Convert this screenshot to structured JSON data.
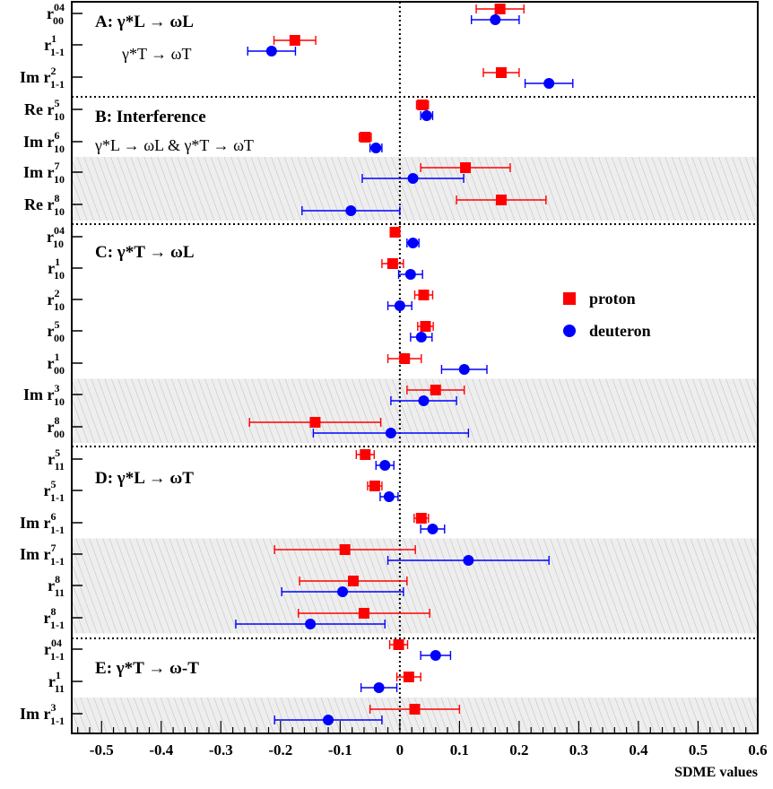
{
  "chart_data": {
    "type": "scatter",
    "xlabel": "SDME values",
    "xlim": [
      -0.55,
      0.6
    ],
    "x_ticks": [
      "-0.5",
      "-0.4",
      "-0.3",
      "-0.2",
      "-0.1",
      "0",
      "0.1",
      "0.2",
      "0.3",
      "0.4",
      "0.5",
      "0.6"
    ],
    "legend_position": "right",
    "series": [
      {
        "name": "proton",
        "color": "#ff0000",
        "marker": "square"
      },
      {
        "name": "deuteron",
        "color": "#0000ff",
        "marker": "circle"
      }
    ],
    "groups": [
      {
        "letter": "A",
        "lines": [
          "γ*L → ωL",
          "γ*T → ωT"
        ]
      },
      {
        "letter": "B",
        "lines": [
          "Interference",
          "γ*L → ωL & γ*T → ωT"
        ]
      },
      {
        "letter": "C",
        "lines": [
          "γ*T → ωL"
        ]
      },
      {
        "letter": "D",
        "lines": [
          "γ*L → ωT"
        ]
      },
      {
        "letter": "E",
        "lines": [
          "γ*T → ω-T"
        ]
      }
    ],
    "rows": [
      {
        "prefix": "",
        "sup": "04",
        "sub": "00",
        "group": "A",
        "shaded": false,
        "proton": {
          "value": 0.168,
          "err_low": 0.04,
          "err_high": 0.04
        },
        "deuteron": {
          "value": 0.16,
          "err_low": 0.04,
          "err_high": 0.04
        }
      },
      {
        "prefix": "",
        "sup": "1",
        "sub": "1-1",
        "group": "A",
        "shaded": false,
        "proton": {
          "value": -0.176,
          "err_low": 0.035,
          "err_high": 0.035
        },
        "deuteron": {
          "value": -0.215,
          "err_low": 0.04,
          "err_high": 0.04
        }
      },
      {
        "prefix": "Im",
        "sup": "2",
        "sub": "1-1",
        "group": "A",
        "shaded": false,
        "proton": {
          "value": 0.17,
          "err_low": 0.03,
          "err_high": 0.03
        },
        "deuteron": {
          "value": 0.25,
          "err_low": 0.04,
          "err_high": 0.04
        }
      },
      {
        "prefix": "Re",
        "sup": "5",
        "sub": "10",
        "group": "B",
        "shaded": false,
        "proton": {
          "value": 0.038,
          "err_low": 0.01,
          "err_high": 0.01
        },
        "deuteron": {
          "value": 0.045,
          "err_low": 0.01,
          "err_high": 0.01
        }
      },
      {
        "prefix": "Im",
        "sup": "6",
        "sub": "10",
        "group": "B",
        "shaded": false,
        "proton": {
          "value": -0.058,
          "err_low": 0.01,
          "err_high": 0.01
        },
        "deuteron": {
          "value": -0.04,
          "err_low": 0.01,
          "err_high": 0.01
        }
      },
      {
        "prefix": "Im",
        "sup": "7",
        "sub": "10",
        "group": "B",
        "shaded": true,
        "proton": {
          "value": 0.11,
          "err_low": 0.075,
          "err_high": 0.075
        },
        "deuteron": {
          "value": 0.022,
          "err_low": 0.085,
          "err_high": 0.085
        }
      },
      {
        "prefix": "Re",
        "sup": "8",
        "sub": "10",
        "group": "B",
        "shaded": true,
        "proton": {
          "value": 0.17,
          "err_low": 0.075,
          "err_high": 0.075
        },
        "deuteron": {
          "value": -0.082,
          "err_low": 0.082,
          "err_high": 0.082
        }
      },
      {
        "prefix": "",
        "sup": "04",
        "sub": "10",
        "group": "C",
        "shaded": false,
        "proton": {
          "value": -0.008,
          "err_low": 0.008,
          "err_high": 0.008
        },
        "deuteron": {
          "value": 0.022,
          "err_low": 0.01,
          "err_high": 0.01
        }
      },
      {
        "prefix": "",
        "sup": "1",
        "sub": "10",
        "group": "C",
        "shaded": false,
        "proton": {
          "value": -0.012,
          "err_low": 0.018,
          "err_high": 0.018
        },
        "deuteron": {
          "value": 0.018,
          "err_low": 0.02,
          "err_high": 0.02
        }
      },
      {
        "prefix": "",
        "sup": "2",
        "sub": "10",
        "group": "C",
        "shaded": false,
        "proton": {
          "value": 0.04,
          "err_low": 0.015,
          "err_high": 0.015
        },
        "deuteron": {
          "value": 0.0,
          "err_low": 0.02,
          "err_high": 0.02
        }
      },
      {
        "prefix": "",
        "sup": "5",
        "sub": "00",
        "group": "C",
        "shaded": false,
        "proton": {
          "value": 0.043,
          "err_low": 0.013,
          "err_high": 0.013
        },
        "deuteron": {
          "value": 0.036,
          "err_low": 0.018,
          "err_high": 0.018
        }
      },
      {
        "prefix": "",
        "sup": "1",
        "sub": "00",
        "group": "C",
        "shaded": false,
        "proton": {
          "value": 0.008,
          "err_low": 0.028,
          "err_high": 0.028
        },
        "deuteron": {
          "value": 0.108,
          "err_low": 0.038,
          "err_high": 0.038
        }
      },
      {
        "prefix": "Im",
        "sup": "3",
        "sub": "10",
        "group": "C",
        "shaded": true,
        "proton": {
          "value": 0.06,
          "err_low": 0.048,
          "err_high": 0.048
        },
        "deuteron": {
          "value": 0.04,
          "err_low": 0.055,
          "err_high": 0.055
        }
      },
      {
        "prefix": "",
        "sup": "8",
        "sub": "00",
        "group": "C",
        "shaded": true,
        "proton": {
          "value": -0.142,
          "err_low": 0.11,
          "err_high": 0.11
        },
        "deuteron": {
          "value": -0.015,
          "err_low": 0.13,
          "err_high": 0.13
        }
      },
      {
        "prefix": "",
        "sup": "5",
        "sub": "11",
        "group": "D",
        "shaded": false,
        "proton": {
          "value": -0.058,
          "err_low": 0.015,
          "err_high": 0.015
        },
        "deuteron": {
          "value": -0.025,
          "err_low": 0.015,
          "err_high": 0.015
        }
      },
      {
        "prefix": "",
        "sup": "5",
        "sub": "1-1",
        "group": "D",
        "shaded": false,
        "proton": {
          "value": -0.042,
          "err_low": 0.012,
          "err_high": 0.012
        },
        "deuteron": {
          "value": -0.018,
          "err_low": 0.015,
          "err_high": 0.015
        }
      },
      {
        "prefix": "Im",
        "sup": "6",
        "sub": "1-1",
        "group": "D",
        "shaded": false,
        "proton": {
          "value": 0.036,
          "err_low": 0.012,
          "err_high": 0.012
        },
        "deuteron": {
          "value": 0.055,
          "err_low": 0.02,
          "err_high": 0.02
        }
      },
      {
        "prefix": "Im",
        "sup": "7",
        "sub": "1-1",
        "group": "D",
        "shaded": true,
        "proton": {
          "value": -0.092,
          "err_low": 0.118,
          "err_high": 0.118
        },
        "deuteron": {
          "value": 0.115,
          "err_low": 0.135,
          "err_high": 0.135
        }
      },
      {
        "prefix": "",
        "sup": "8",
        "sub": "11",
        "group": "D",
        "shaded": true,
        "proton": {
          "value": -0.078,
          "err_low": 0.09,
          "err_high": 0.09
        },
        "deuteron": {
          "value": -0.096,
          "err_low": 0.102,
          "err_high": 0.102
        }
      },
      {
        "prefix": "",
        "sup": "8",
        "sub": "1-1",
        "group": "D",
        "shaded": true,
        "proton": {
          "value": -0.06,
          "err_low": 0.11,
          "err_high": 0.11
        },
        "deuteron": {
          "value": -0.15,
          "err_low": 0.125,
          "err_high": 0.125
        }
      },
      {
        "prefix": "",
        "sup": "04",
        "sub": "1-1",
        "group": "E",
        "shaded": false,
        "proton": {
          "value": -0.002,
          "err_low": 0.015,
          "err_high": 0.015
        },
        "deuteron": {
          "value": 0.06,
          "err_low": 0.025,
          "err_high": 0.025
        }
      },
      {
        "prefix": "",
        "sup": "1",
        "sub": "11",
        "group": "E",
        "shaded": false,
        "proton": {
          "value": 0.015,
          "err_low": 0.02,
          "err_high": 0.02
        },
        "deuteron": {
          "value": -0.035,
          "err_low": 0.03,
          "err_high": 0.03
        }
      },
      {
        "prefix": "Im",
        "sup": "3",
        "sub": "1-1",
        "group": "E",
        "shaded": true,
        "proton": {
          "value": 0.025,
          "err_low": 0.075,
          "err_high": 0.075
        },
        "deuteron": {
          "value": -0.12,
          "err_low": 0.09,
          "err_high": 0.09
        }
      }
    ]
  }
}
